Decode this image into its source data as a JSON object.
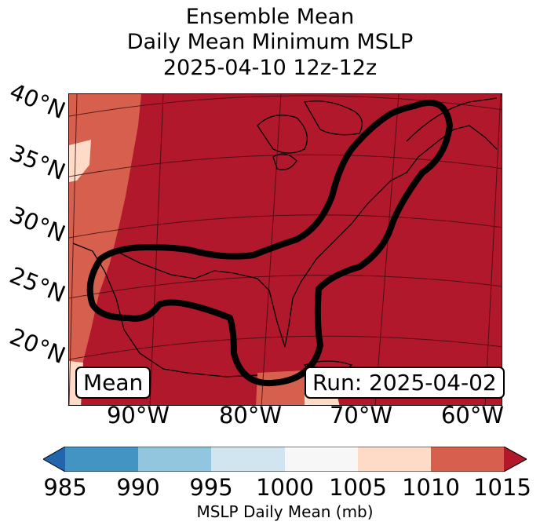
{
  "title": {
    "line1": "Ensemble Mean",
    "line2": "Daily Mean Minimum MSLP",
    "line3": "2025-04-10 12z-12z"
  },
  "map": {
    "lat_labels": [
      "40°N",
      "35°N",
      "30°N",
      "25°N",
      "20°N"
    ],
    "lon_labels": [
      "90°W",
      "80°W",
      "70°W",
      "60°W"
    ],
    "left_box": "Mean",
    "right_box": "Run: 2025-04-02",
    "contour_color": "#000000",
    "land_color": "#000000"
  },
  "colorbar": {
    "label": "MSLP Daily Mean (mb)",
    "ticks": [
      "985",
      "990",
      "995",
      "1000",
      "1005",
      "1010",
      "1015"
    ],
    "colors": [
      "#2166ac",
      "#4393c3",
      "#92c5de",
      "#d1e5f0",
      "#f7f7f7",
      "#fddbc7",
      "#d6604d",
      "#b2182b"
    ]
  }
}
